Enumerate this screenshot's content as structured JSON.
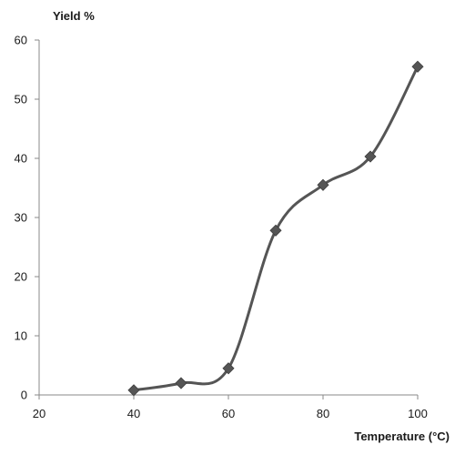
{
  "chart_data": {
    "type": "line",
    "title": "",
    "xlabel": "Temperature (°C)",
    "ylabel": "Yield %",
    "x": [
      40,
      50,
      60,
      70,
      80,
      90,
      100
    ],
    "series": [
      {
        "values": [
          0.8,
          2.0,
          4.5,
          27.8,
          35.5,
          40.3,
          55.5
        ]
      }
    ],
    "xlim": [
      20,
      100
    ],
    "ylim": [
      0,
      60
    ],
    "xticks": [
      20,
      40,
      60,
      80,
      100
    ],
    "yticks": [
      0,
      10,
      20,
      30,
      40,
      50,
      60
    ],
    "grid": false,
    "legend": "none",
    "smooth": true,
    "marker": "diamond",
    "colors": {
      "line": "#555555",
      "marker": "#555555",
      "axis": "#888888"
    }
  }
}
